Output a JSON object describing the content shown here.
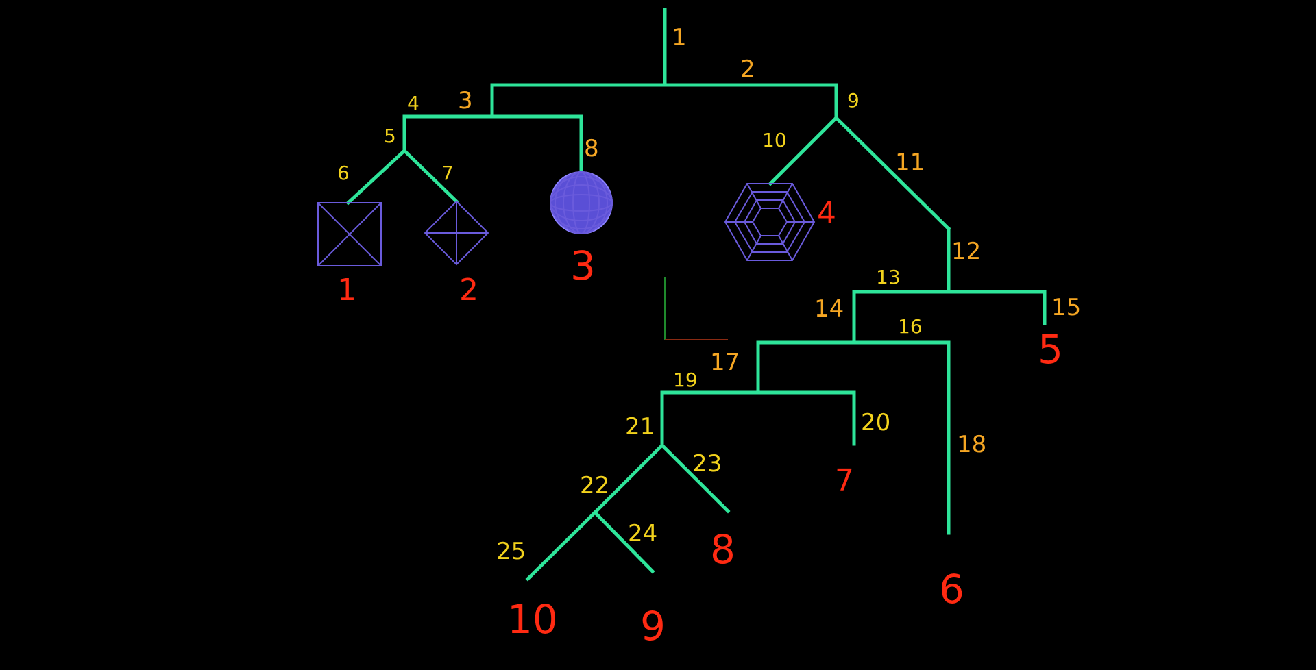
{
  "colors": {
    "background": "#000000",
    "edge": "#2ee59a",
    "segment_label": "#f5a623",
    "segment_label_alt": "#f2d21c",
    "leaf_label": "#ff2a12",
    "shape": "#6a5bdc"
  },
  "segments": [
    "1",
    "2",
    "3",
    "4",
    "5",
    "6",
    "7",
    "8",
    "9",
    "10",
    "11",
    "12",
    "13",
    "14",
    "15",
    "16",
    "17",
    "18",
    "19",
    "20",
    "21",
    "22",
    "23",
    "24",
    "25"
  ],
  "leaves": [
    "1",
    "2",
    "3",
    "4",
    "5",
    "6",
    "7",
    "8",
    "9",
    "10"
  ],
  "icons": {
    "leaf1": "square-with-diagonals-icon",
    "leaf2": "diamond-with-cross-icon",
    "leaf3": "wireframe-sphere-icon",
    "leaf4": "wireframe-hexagonal-torus-icon"
  }
}
